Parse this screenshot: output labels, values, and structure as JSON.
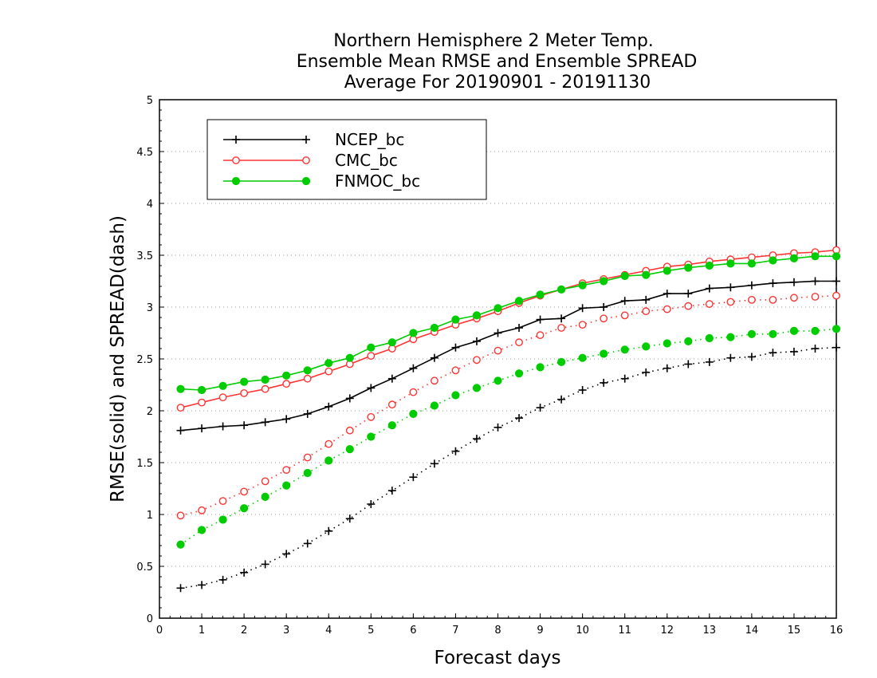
{
  "chart_data": {
    "type": "line",
    "title_lines": [
      "Northern Hemisphere 2 Meter Temp.",
      "Ensemble Mean RMSE and Ensemble SPREAD",
      "Average For 20190901 - 20191130"
    ],
    "xlabel": "Forecast days",
    "ylabel": "RMSE(solid) and SPREAD(dash)",
    "xlim": [
      0,
      16
    ],
    "ylim": [
      0,
      5
    ],
    "x_ticks": [
      "0",
      "1",
      "2",
      "3",
      "4",
      "5",
      "6",
      "7",
      "8",
      "9",
      "10",
      "11",
      "12",
      "13",
      "14",
      "15",
      "16"
    ],
    "y_ticks": [
      "0",
      "0.5",
      "1",
      "1.5",
      "2",
      "2.5",
      "3",
      "3.5",
      "4",
      "4.5",
      "5"
    ],
    "grid": "horizontal dotted",
    "legend_position": "top-left",
    "x": [
      0.5,
      1,
      1.5,
      2,
      2.5,
      3,
      3.5,
      4,
      4.5,
      5,
      5.5,
      6,
      6.5,
      7,
      7.5,
      8,
      8.5,
      9,
      9.5,
      10,
      10.5,
      11,
      11.5,
      12,
      12.5,
      13,
      13.5,
      14,
      14.5,
      15,
      15.5,
      16
    ],
    "series": [
      {
        "name": "NCEP_bc",
        "color": "#000000",
        "marker": "plus",
        "rmse": [
          1.81,
          1.83,
          1.85,
          1.86,
          1.89,
          1.92,
          1.97,
          2.04,
          2.12,
          2.22,
          2.31,
          2.41,
          2.51,
          2.61,
          2.67,
          2.75,
          2.8,
          2.88,
          2.89,
          2.99,
          3.0,
          3.06,
          3.07,
          3.13,
          3.13,
          3.18,
          3.19,
          3.21,
          3.23,
          3.24,
          3.25,
          3.25
        ],
        "spread": [
          0.29,
          0.32,
          0.37,
          0.44,
          0.52,
          0.62,
          0.72,
          0.84,
          0.96,
          1.1,
          1.23,
          1.36,
          1.49,
          1.61,
          1.73,
          1.84,
          1.93,
          2.03,
          2.11,
          2.2,
          2.27,
          2.31,
          2.37,
          2.41,
          2.45,
          2.47,
          2.51,
          2.52,
          2.56,
          2.57,
          2.6,
          2.61
        ]
      },
      {
        "name": "CMC_bc",
        "color": "#ff3333",
        "marker": "open-circle",
        "rmse": [
          2.03,
          2.08,
          2.13,
          2.17,
          2.21,
          2.26,
          2.31,
          2.38,
          2.45,
          2.53,
          2.6,
          2.69,
          2.76,
          2.83,
          2.89,
          2.96,
          3.04,
          3.11,
          3.17,
          3.23,
          3.27,
          3.31,
          3.35,
          3.39,
          3.41,
          3.44,
          3.46,
          3.48,
          3.5,
          3.52,
          3.53,
          3.55
        ],
        "spread": [
          0.99,
          1.04,
          1.13,
          1.22,
          1.32,
          1.43,
          1.55,
          1.68,
          1.81,
          1.94,
          2.06,
          2.18,
          2.29,
          2.39,
          2.49,
          2.58,
          2.66,
          2.73,
          2.8,
          2.83,
          2.89,
          2.92,
          2.96,
          2.98,
          3.01,
          3.03,
          3.05,
          3.07,
          3.07,
          3.09,
          3.1,
          3.11
        ]
      },
      {
        "name": "FNMOC_bc",
        "color": "#00cc00",
        "marker": "filled-circle",
        "rmse": [
          2.21,
          2.2,
          2.24,
          2.28,
          2.3,
          2.34,
          2.39,
          2.46,
          2.51,
          2.61,
          2.66,
          2.75,
          2.8,
          2.88,
          2.92,
          2.99,
          3.06,
          3.12,
          3.17,
          3.21,
          3.25,
          3.3,
          3.31,
          3.35,
          3.38,
          3.4,
          3.42,
          3.42,
          3.45,
          3.47,
          3.49,
          3.49
        ],
        "spread": [
          0.71,
          0.85,
          0.95,
          1.06,
          1.17,
          1.28,
          1.4,
          1.52,
          1.63,
          1.75,
          1.86,
          1.97,
          2.05,
          2.15,
          2.22,
          2.29,
          2.36,
          2.42,
          2.47,
          2.51,
          2.55,
          2.59,
          2.62,
          2.65,
          2.67,
          2.7,
          2.71,
          2.74,
          2.74,
          2.77,
          2.77,
          2.79
        ]
      }
    ]
  }
}
